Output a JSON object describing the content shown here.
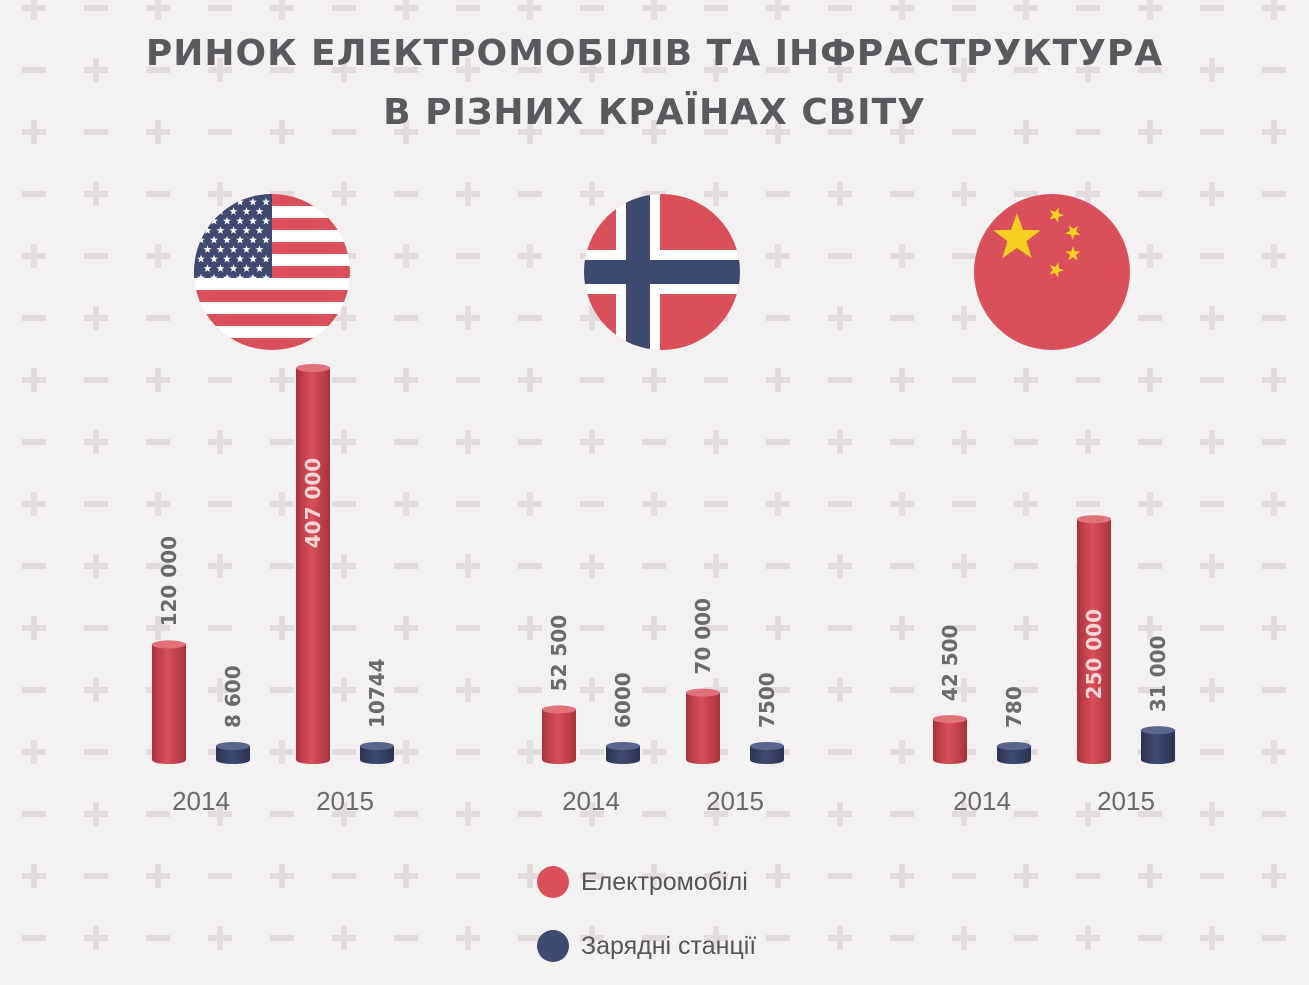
{
  "title": {
    "line1": "РИНОК ЕЛЕКТРОМОБІЛІВ ТА ІНФРАСТРУКТУРА",
    "line2": "В РІЗНИХ КРАЇНАХ СВІТУ"
  },
  "colors": {
    "ev": "#d9505a",
    "ev_dark": "#a8323c",
    "stations": "#3e4a70",
    "stations_dark": "#2a3352",
    "background": "#f3f1f1",
    "pattern": "#e3dcdc",
    "year_label": "#6a6a6a",
    "value_label": "#6a6a6a"
  },
  "legend": [
    {
      "label": "Електромобілі",
      "color": "#d9505a"
    },
    {
      "label": "Зарядні станції",
      "color": "#3e4a70"
    }
  ],
  "chart_data": {
    "type": "bar",
    "title": "РИНОК ЕЛЕКТРОМОБІЛІВ ТА ІНФРАСТРУКТУРА В РІЗНИХ КРАЇНАХ СВІТУ",
    "groups": [
      {
        "flag": "usa-flag-icon",
        "years": [
          {
            "year": "2014",
            "ev": 120000,
            "ev_label": "120 000",
            "stations": 8600,
            "stations_label": "8 600"
          },
          {
            "year": "2015",
            "ev": 407000,
            "ev_label": "407 000",
            "stations": 10744,
            "stations_label": "10744"
          }
        ]
      },
      {
        "flag": "norway-flag-icon",
        "years": [
          {
            "year": "2014",
            "ev": 52500,
            "ev_label": "52 500",
            "stations": 6000,
            "stations_label": "6000"
          },
          {
            "year": "2015",
            "ev": 70000,
            "ev_label": "70 000",
            "stations": 7500,
            "stations_label": "7500"
          }
        ]
      },
      {
        "flag": "china-flag-icon",
        "years": [
          {
            "year": "2014",
            "ev": 42500,
            "ev_label": "42 500",
            "stations": 780,
            "stations_label": "780"
          },
          {
            "year": "2015",
            "ev": 250000,
            "ev_label": "250 000",
            "stations": 31000,
            "stations_label": "31 000"
          }
        ]
      }
    ],
    "series": [
      {
        "name": "Електромобілі",
        "key": "ev"
      },
      {
        "name": "Зарядні станції",
        "key": "stations"
      }
    ],
    "grid": false,
    "legend_position": "bottom-center"
  }
}
